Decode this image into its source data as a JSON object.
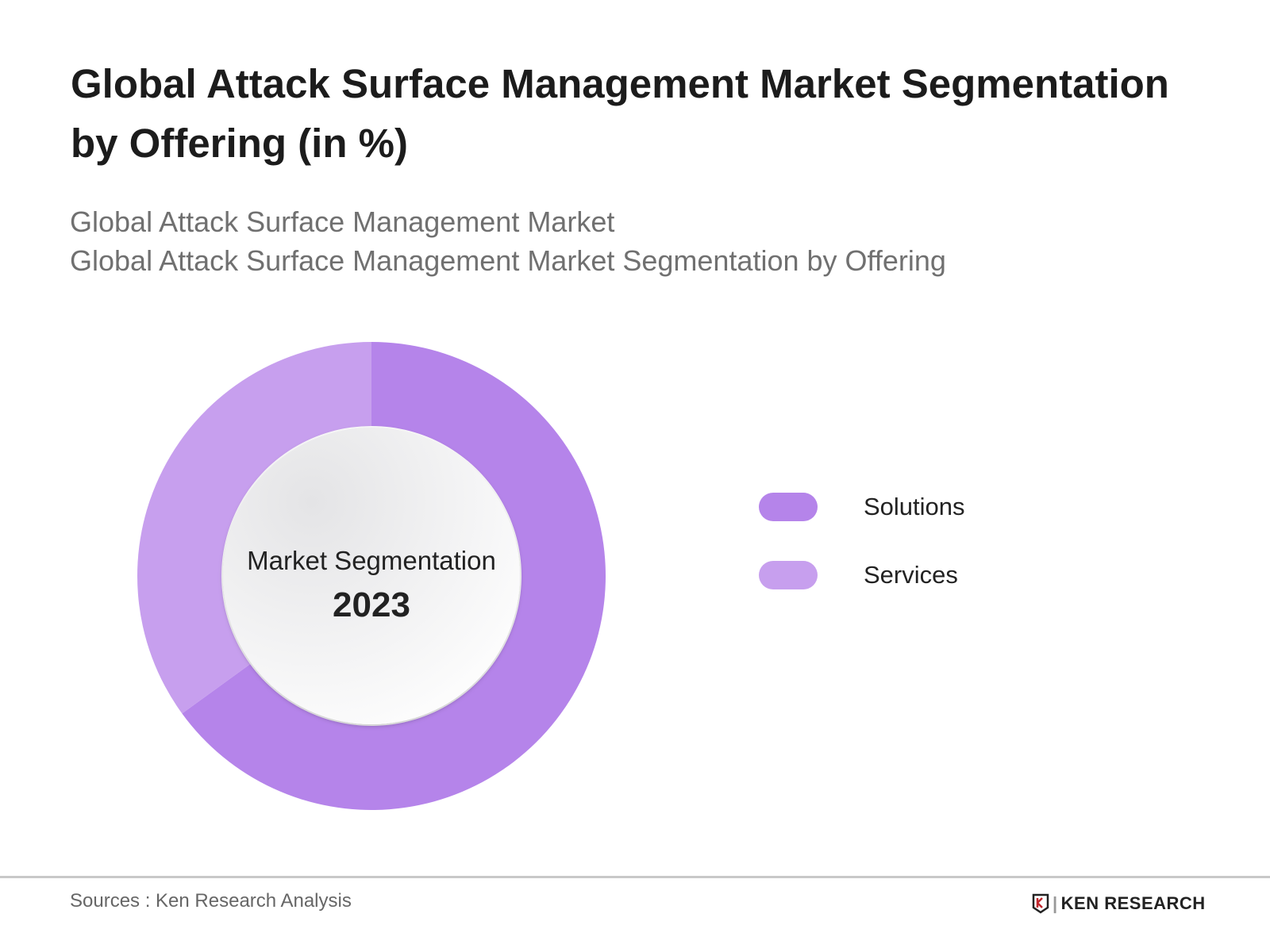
{
  "title": "Global Attack Surface Management Market Segmentation by Offering (in %)",
  "subtitles": [
    "Global Attack Surface Management Market",
    "Global Attack Surface Management Market Segmentation by Offering"
  ],
  "chart_data": {
    "type": "pie",
    "variant": "donut",
    "title": "Global Attack Surface Management Market Segmentation by Offering (in %)",
    "center_label": "Market Segmentation",
    "center_year": "2023",
    "categories": [
      "Solutions",
      "Services"
    ],
    "values": [
      65,
      35
    ],
    "colors": [
      "#b584ea",
      "#c79fee"
    ],
    "legend": "right"
  },
  "footer": {
    "sources": "Sources : Ken Research Analysis",
    "logo_text": "KEN RESEARCH"
  }
}
